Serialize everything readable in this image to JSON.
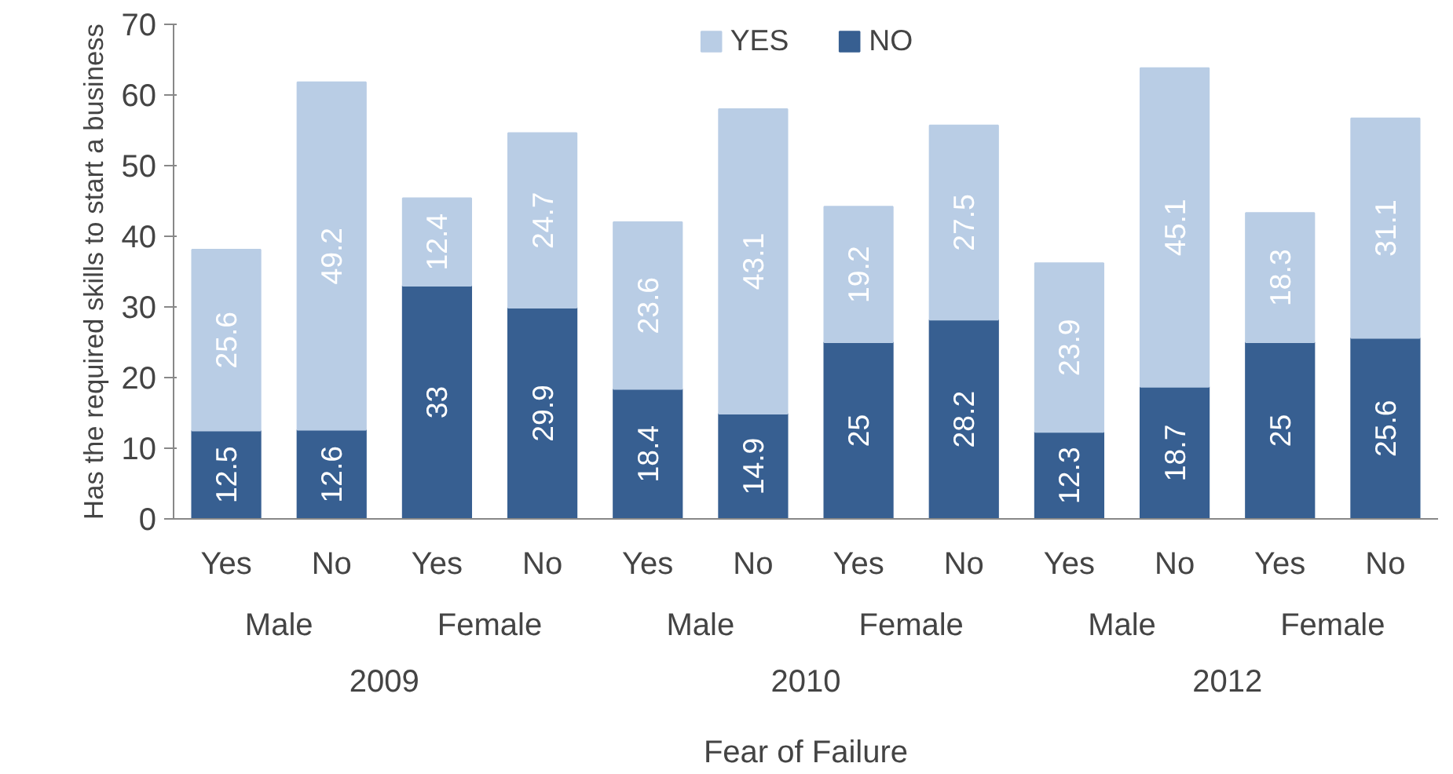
{
  "chart_data": {
    "type": "bar",
    "stacked": true,
    "ylabel": "Has the required skills to start a business",
    "xlabel": "Fear of Failure",
    "categories": [
      "Yes",
      "No",
      "Yes",
      "No",
      "Yes",
      "No",
      "Yes",
      "No",
      "Yes",
      "No",
      "Yes",
      "No"
    ],
    "series": [
      {
        "name": "NO",
        "color": "#375f91",
        "values": [
          12.5,
          12.6,
          33,
          29.9,
          18.4,
          14.9,
          25,
          28.2,
          12.3,
          18.7,
          25,
          25.6
        ]
      },
      {
        "name": "YES",
        "color": "#b9cde5",
        "values": [
          25.6,
          49.2,
          12.4,
          24.7,
          23.6,
          43.1,
          19.2,
          27.5,
          23.9,
          45.1,
          18.3,
          31.1
        ]
      }
    ],
    "annotations": [
      "Male",
      "Female",
      "Male",
      "Female",
      "Male",
      "Female",
      "2009",
      "2010",
      "2012"
    ],
    "ylim": [
      0,
      70
    ],
    "yticks": [
      0,
      10,
      20,
      30,
      40,
      50,
      60,
      70
    ],
    "grid": false,
    "legend": "top",
    "data_labels": true
  }
}
